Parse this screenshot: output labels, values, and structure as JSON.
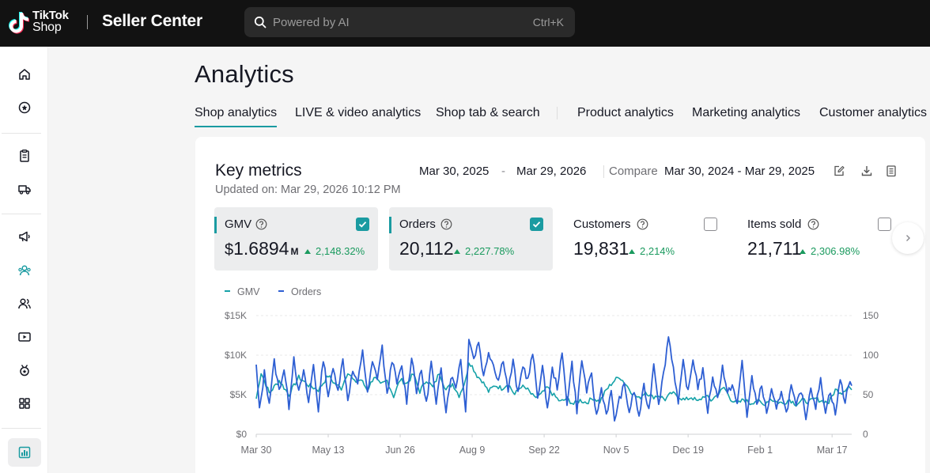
{
  "header": {
    "logo_text_line1": "TikTok",
    "logo_text_line2": "Shop",
    "app_title": "Seller Center",
    "search_placeholder": "Powered by AI",
    "search_shortcut": "Ctrl+K"
  },
  "sidebar": {
    "items": [
      {
        "icon": "home-icon",
        "active": false
      },
      {
        "icon": "growth-center-icon",
        "active": false
      },
      {
        "icon": "orders-icon",
        "active": false
      },
      {
        "icon": "shipping-icon",
        "active": false
      },
      {
        "icon": "marketing-icon",
        "active": false
      },
      {
        "icon": "affiliate-icon",
        "active": false
      },
      {
        "icon": "customers-icon",
        "active": false
      },
      {
        "icon": "live-video-icon",
        "active": false
      },
      {
        "icon": "rewards-icon",
        "active": false
      },
      {
        "icon": "apps-icon",
        "active": false
      },
      {
        "icon": "analytics-icon",
        "active": true
      }
    ]
  },
  "page": {
    "title": "Analytics",
    "tabs": [
      {
        "label": "Shop analytics",
        "active": true
      },
      {
        "label": "LIVE & video analytics",
        "active": false
      },
      {
        "label": "Shop tab & search",
        "active": false
      },
      {
        "label": "Product analytics",
        "active": false
      },
      {
        "label": "Marketing analytics",
        "active": false
      },
      {
        "label": "Customer analytics",
        "active": false
      }
    ]
  },
  "key_metrics": {
    "title": "Key metrics",
    "updated": "Updated on: Mar 29, 2026 10:12 PM",
    "date_start": "Mar 30, 2025",
    "date_dash": "-",
    "date_end": "Mar 29, 2026",
    "compare_label": "Compare",
    "compare_range": "Mar 30, 2024 - Mar 29, 2025",
    "metrics": [
      {
        "label": "GMV",
        "currency": "$",
        "value": "1.6894",
        "unit": "M",
        "change": "2,148.32%",
        "selected": true
      },
      {
        "label": "Orders",
        "currency": "",
        "value": "20,112",
        "unit": "",
        "change": "2,227.78%",
        "selected": true
      },
      {
        "label": "Customers",
        "currency": "",
        "value": "19,831",
        "unit": "",
        "change": "2,214%",
        "selected": false
      },
      {
        "label": "Items sold",
        "currency": "",
        "value": "21,711",
        "unit": "",
        "change": "2,306.98%",
        "selected": false
      }
    ]
  },
  "colors": {
    "accent": "#1a9ba1",
    "gmv_line": "#16a2a8",
    "orders_line": "#2e5fd3",
    "positive": "#1a9a5e",
    "topbar": "#121212"
  },
  "chart_data": {
    "type": "line",
    "legend": [
      "GMV",
      "Orders"
    ],
    "left_axis": {
      "ticks": [
        "$0",
        "$5K",
        "$10K",
        "$15K"
      ],
      "values": [
        0,
        5000,
        10000,
        15000
      ],
      "ylim": [
        0,
        15000
      ]
    },
    "right_axis": {
      "ticks": [
        "0",
        "50",
        "100",
        "150"
      ],
      "values": [
        0,
        50,
        100,
        150
      ],
      "ylim": [
        0,
        150
      ]
    },
    "x_ticks": [
      "Mar 30",
      "May 13",
      "Jun 26",
      "Aug 9",
      "Sep 22",
      "Nov 5",
      "Dec 19",
      "Feb 1",
      "Mar 17"
    ],
    "x_tick_index": [
      0,
      44,
      88,
      132,
      176,
      220,
      264,
      308,
      352
    ],
    "grid": true,
    "legend_position": "top-left",
    "series": [
      {
        "name": "GMV",
        "axis": "left",
        "x_start": "Mar 30, 2025",
        "x_end": "Mar 29, 2026",
        "keyframes_index": [
          0,
          3,
          8,
          14,
          20,
          26,
          32,
          38,
          44,
          48,
          52,
          56,
          60,
          64,
          68,
          72,
          76,
          80,
          84,
          88,
          92,
          96,
          100,
          104,
          108,
          112,
          116,
          120,
          124,
          128,
          130,
          132,
          135,
          138,
          142,
          146,
          150,
          154,
          158,
          162,
          166,
          170,
          174,
          178,
          182,
          186,
          190,
          194,
          198,
          202,
          206,
          210,
          214,
          218,
          222,
          226,
          230,
          234,
          238,
          242,
          246,
          250,
          254,
          258,
          262,
          266,
          270,
          274,
          278,
          282,
          286,
          290,
          294,
          298,
          302,
          306,
          310,
          314,
          318,
          322,
          326,
          330,
          334,
          338,
          342,
          346,
          350,
          354,
          358,
          362,
          364
        ],
        "keyframes_value": [
          4500,
          7800,
          5200,
          6800,
          5000,
          7200,
          6200,
          5600,
          7400,
          6400,
          5800,
          7900,
          6600,
          6900,
          5600,
          7300,
          6200,
          6800,
          4800,
          6900,
          6400,
          7600,
          5400,
          6900,
          5900,
          7800,
          5600,
          6400,
          4900,
          6800,
          9200,
          8600,
          7400,
          6800,
          5400,
          6200,
          5800,
          6400,
          5000,
          6100,
          5600,
          4600,
          5000,
          5900,
          4900,
          4100,
          4500,
          3800,
          4300,
          4000,
          4600,
          4100,
          5600,
          6600,
          7300,
          6300,
          5200,
          4500,
          5400,
          4700,
          4900,
          4400,
          5200,
          4800,
          4300,
          4700,
          4100,
          4900,
          4300,
          5000,
          5900,
          4500,
          3800,
          4400,
          3900,
          4300,
          3700,
          4500,
          4100,
          3900,
          4400,
          3800,
          4300,
          4100,
          4500,
          4200,
          4000,
          5600,
          5300,
          6100,
          5600
        ]
      },
      {
        "name": "Orders",
        "axis": "right",
        "x_start": "Mar 30, 2025",
        "x_end": "Mar 29, 2026",
        "keyframes_index": [
          0,
          2,
          5,
          8,
          11,
          14,
          17,
          20,
          23,
          26,
          29,
          32,
          35,
          38,
          41,
          44,
          47,
          50,
          53,
          56,
          59,
          62,
          65,
          68,
          71,
          74,
          77,
          80,
          83,
          86,
          89,
          92,
          95,
          98,
          101,
          104,
          107,
          110,
          113,
          116,
          119,
          122,
          125,
          128,
          130,
          133,
          136,
          139,
          142,
          145,
          148,
          151,
          154,
          157,
          160,
          163,
          166,
          169,
          172,
          175,
          178,
          181,
          184,
          187,
          190,
          193,
          196,
          199,
          202,
          205,
          208,
          211,
          214,
          217,
          219,
          222,
          225,
          228,
          231,
          234,
          237,
          240,
          243,
          246,
          249,
          252,
          255,
          258,
          261,
          264,
          267,
          270,
          273,
          276,
          279,
          282,
          285,
          288,
          291,
          294,
          297,
          300,
          303,
          306,
          309,
          312,
          315,
          318,
          321,
          324,
          327,
          330,
          333,
          336,
          339,
          342,
          345,
          348,
          351,
          354,
          357,
          360,
          362,
          364
        ],
        "keyframes_value": [
          86,
          30,
          78,
          40,
          92,
          55,
          83,
          35,
          98,
          52,
          79,
          40,
          88,
          31,
          96,
          49,
          82,
          58,
          94,
          45,
          80,
          62,
          108,
          50,
          90,
          72,
          110,
          48,
          95,
          64,
          85,
          42,
          100,
          55,
          80,
          38,
          92,
          35,
          86,
          30,
          74,
          60,
          96,
          28,
          123,
          95,
          118,
          72,
          105,
          88,
          68,
          96,
          55,
          92,
          50,
          88,
          68,
          102,
          48,
          84,
          33,
          82,
          60,
          101,
          40,
          90,
          30,
          94,
          55,
          74,
          22,
          58,
          26,
          52,
          18,
          44,
          62,
          28,
          55,
          22,
          60,
          30,
          90,
          40,
          76,
          124,
          85,
          38,
          91,
          52,
          96,
          60,
          80,
          29,
          74,
          45,
          86,
          50,
          64,
          36,
          92,
          24,
          70,
          40,
          60,
          28,
          54,
          30,
          57,
          26,
          60,
          34,
          56,
          22,
          60,
          35,
          68,
          30,
          55,
          25,
          70,
          40,
          65,
          60
        ]
      }
    ]
  }
}
